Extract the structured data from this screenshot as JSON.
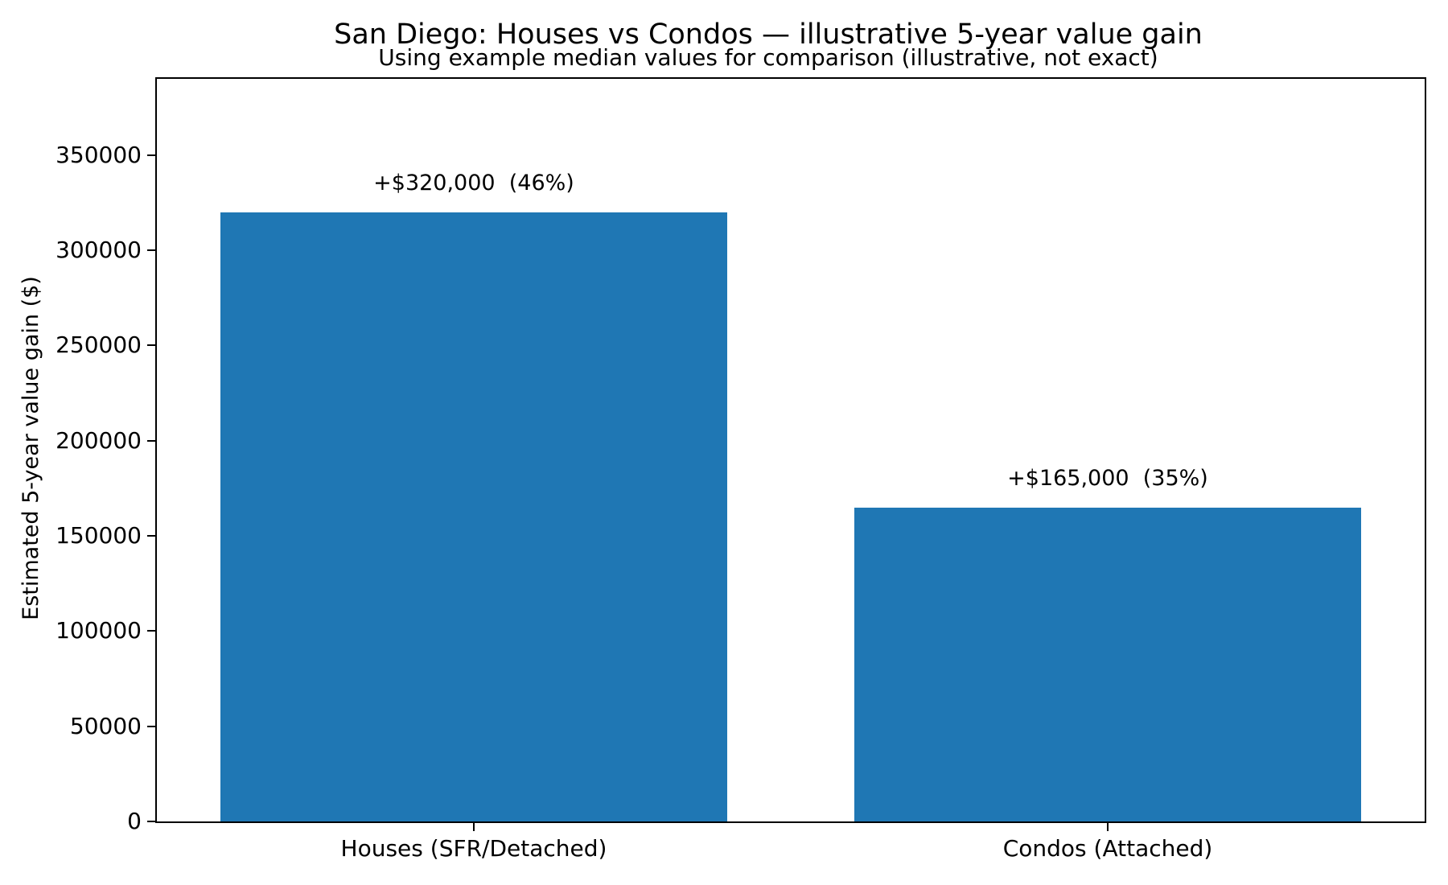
{
  "chart_data": {
    "type": "bar",
    "title": "San Diego: Houses vs Condos — illustrative 5-year value gain",
    "subtitle": "Using example median values for comparison (illustrative, not exact)",
    "categories": [
      "Houses (SFR/Detached)",
      "Condos (Attached)"
    ],
    "values": [
      320000,
      165000
    ],
    "bar_labels": [
      "+$320,000  (46%)",
      "+$165,000  (35%)"
    ],
    "percent_gains": [
      46,
      35
    ],
    "xlabel": "",
    "ylabel": "Estimated 5-year value gain ($)",
    "ylim": [
      0,
      390000
    ],
    "yticks": [
      0,
      50000,
      100000,
      150000,
      200000,
      250000,
      300000,
      350000
    ],
    "bar_color": "#1f77b4",
    "axis_color": "#000000",
    "background_color": "#ffffff",
    "grid": false,
    "legend": null
  }
}
